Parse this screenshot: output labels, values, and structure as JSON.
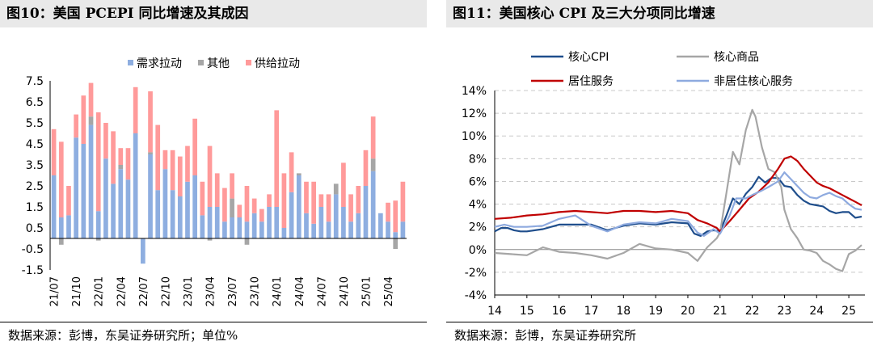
{
  "left_panel": {
    "title": "图10：美国 PCEPI 同比增速及其成因",
    "source": "数据来源：彭博，东吴证券研究所；单位%"
  },
  "right_panel": {
    "title": "图11：美国核心 CPI 及三大分项同比增速",
    "source": "数据来源：彭博，东吴证券研究所"
  },
  "chart_data": [
    {
      "type": "bar",
      "stacked": true,
      "title": "",
      "ylim": [
        -1.5,
        7.5
      ],
      "y_ticks": [
        "-1.5",
        "-0.5",
        "0.5",
        "1.5",
        "2.5",
        "3.5",
        "4.5",
        "5.5",
        "6.5",
        "7.5"
      ],
      "x_tick_labels": [
        "21/07",
        "21/10",
        "22/01",
        "22/04",
        "22/07",
        "22/10",
        "23/01",
        "23/04",
        "23/07",
        "23/10",
        "24/01",
        "24/04",
        "24/07",
        "24/10",
        "25/01",
        "25/04"
      ],
      "legend_position": "top",
      "categories": [
        "21/07",
        "21/08",
        "21/09",
        "21/10",
        "21/11",
        "21/12",
        "22/01",
        "22/02",
        "22/03",
        "22/04",
        "22/05",
        "22/06",
        "22/07",
        "22/08",
        "22/09",
        "22/10",
        "22/11",
        "22/12",
        "23/01",
        "23/02",
        "23/03",
        "23/04",
        "23/05",
        "23/06",
        "23/07",
        "23/08",
        "23/09",
        "23/10",
        "23/11",
        "23/12",
        "24/01",
        "24/02",
        "24/03",
        "24/04",
        "24/05",
        "24/06",
        "24/07",
        "24/08",
        "24/09",
        "24/10",
        "24/11",
        "24/12",
        "25/01",
        "25/02",
        "25/03",
        "25/04",
        "25/05",
        "25/06"
      ],
      "series": [
        {
          "name": "需求拉动",
          "color": "#8eaee0",
          "values": [
            3.0,
            1.0,
            1.1,
            4.8,
            4.5,
            5.4,
            1.3,
            3.8,
            2.6,
            3.3,
            2.8,
            5.0,
            -1.2,
            4.0,
            2.3,
            3.3,
            2.3,
            2.0,
            2.7,
            3.0,
            1.1,
            1.5,
            1.5,
            0.8,
            1.0,
            1.0,
            0.8,
            1.2,
            0.8,
            1.5,
            1.5,
            0.5,
            2.2,
            3.0,
            1.2,
            0.7,
            1.5,
            0.8,
            2.1,
            1.5,
            0.8,
            1.2,
            2.5,
            3.2,
            1.2,
            0.8,
            0.3,
            0.8
          ]
        },
        {
          "name": "其他",
          "color": "#a6a6a6",
          "values": [
            0.0,
            -0.3,
            0.0,
            0.0,
            0.0,
            0.4,
            -0.1,
            0.0,
            0.0,
            0.2,
            0.0,
            0.0,
            0.0,
            0.1,
            0.0,
            0.0,
            0.0,
            0.0,
            0.0,
            0.0,
            0.0,
            -0.1,
            0.0,
            0.0,
            0.9,
            0.0,
            -0.3,
            0.0,
            0.0,
            0.0,
            0.0,
            0.0,
            0.0,
            0.1,
            0.0,
            0.0,
            0.0,
            0.0,
            0.5,
            0.0,
            0.0,
            0.0,
            0.0,
            0.6,
            0.0,
            0.0,
            -0.5,
            0.0
          ]
        },
        {
          "name": "供给拉动",
          "color": "#ff9a9a",
          "values": [
            2.2,
            3.6,
            1.4,
            1.1,
            2.3,
            1.6,
            4.7,
            1.7,
            2.5,
            0.8,
            1.5,
            2.2,
            0.0,
            2.9,
            3.1,
            0.9,
            1.9,
            1.9,
            1.7,
            2.7,
            1.6,
            2.9,
            1.6,
            1.6,
            1.2,
            0.6,
            1.7,
            0.7,
            0.6,
            0.6,
            4.6,
            2.6,
            1.9,
            0.0,
            1.5,
            2.0,
            0.6,
            1.3,
            0.0,
            2.1,
            1.3,
            1.3,
            1.7,
            2.0,
            0.0,
            0.9,
            1.5,
            1.9
          ]
        }
      ]
    },
    {
      "type": "line",
      "title": "",
      "ylim": [
        -4,
        14
      ],
      "y_ticks": [
        "-4%",
        "-2%",
        "0%",
        "2%",
        "4%",
        "6%",
        "8%",
        "10%",
        "12%",
        "14%"
      ],
      "xlim": [
        14,
        25.5
      ],
      "x_ticks": [
        "14",
        "15",
        "16",
        "17",
        "18",
        "19",
        "20",
        "21",
        "22",
        "23",
        "24",
        "25"
      ],
      "grid": true,
      "legend_position": "top",
      "series": [
        {
          "name": "核心CPI",
          "color": "#1f4e8c",
          "width": 2.2,
          "x": [
            14.0,
            14.2,
            14.4,
            14.6,
            14.8,
            15.0,
            15.5,
            16.0,
            16.5,
            17.0,
            17.5,
            18.0,
            18.5,
            19.0,
            19.5,
            20.0,
            20.2,
            20.4,
            20.6,
            20.8,
            21.0,
            21.2,
            21.4,
            21.6,
            21.8,
            22.0,
            22.2,
            22.4,
            22.6,
            22.8,
            23.0,
            23.2,
            23.4,
            23.6,
            23.8,
            24.0,
            24.2,
            24.4,
            24.6,
            24.8,
            25.0,
            25.2,
            25.4
          ],
          "y": [
            1.6,
            1.9,
            1.9,
            1.7,
            1.6,
            1.6,
            1.8,
            2.2,
            2.2,
            2.2,
            1.7,
            2.1,
            2.3,
            2.2,
            2.4,
            2.3,
            1.4,
            1.2,
            1.6,
            1.7,
            1.6,
            3.0,
            4.5,
            4.0,
            4.9,
            5.5,
            6.4,
            5.9,
            6.3,
            6.3,
            5.6,
            5.5,
            4.8,
            4.3,
            4.0,
            3.9,
            3.8,
            3.4,
            3.2,
            3.3,
            3.3,
            2.8,
            2.9
          ]
        },
        {
          "name": "核心商品",
          "color": "#a6a6a6",
          "width": 2.2,
          "x": [
            14.0,
            14.5,
            15.0,
            15.5,
            16.0,
            16.5,
            17.0,
            17.5,
            18.0,
            18.5,
            19.0,
            19.5,
            20.0,
            20.3,
            20.6,
            20.9,
            21.0,
            21.2,
            21.4,
            21.6,
            21.8,
            22.0,
            22.1,
            22.3,
            22.5,
            22.7,
            22.9,
            23.0,
            23.2,
            23.4,
            23.6,
            23.8,
            24.0,
            24.2,
            24.4,
            24.6,
            24.8,
            25.0,
            25.2,
            25.4
          ],
          "y": [
            -0.3,
            -0.4,
            -0.5,
            0.2,
            -0.2,
            -0.3,
            -0.5,
            -0.8,
            -0.3,
            0.5,
            0.1,
            0.0,
            -0.3,
            -1.0,
            0.2,
            1.0,
            1.5,
            5.0,
            8.6,
            7.5,
            10.5,
            12.3,
            11.7,
            9.0,
            7.1,
            6.8,
            5.5,
            3.5,
            1.8,
            1.0,
            0.0,
            -0.1,
            -0.3,
            -1.0,
            -1.3,
            -1.7,
            -1.9,
            -0.4,
            -0.1,
            0.4
          ]
        },
        {
          "name": "居住服务",
          "color": "#c00000",
          "width": 2.2,
          "x": [
            14.0,
            14.5,
            15.0,
            15.5,
            16.0,
            16.5,
            17.0,
            17.5,
            18.0,
            18.5,
            19.0,
            19.5,
            20.0,
            20.3,
            20.6,
            20.9,
            21.0,
            21.3,
            21.6,
            21.9,
            22.2,
            22.5,
            22.8,
            23.0,
            23.2,
            23.4,
            23.6,
            23.8,
            24.0,
            24.2,
            24.4,
            24.6,
            24.8,
            25.0,
            25.2,
            25.4
          ],
          "y": [
            2.7,
            2.8,
            3.0,
            3.1,
            3.3,
            3.4,
            3.3,
            3.2,
            3.4,
            3.4,
            3.3,
            3.4,
            3.2,
            2.6,
            2.3,
            1.9,
            1.6,
            2.5,
            3.5,
            4.5,
            5.1,
            5.9,
            7.1,
            8.0,
            8.2,
            7.8,
            7.1,
            6.5,
            5.9,
            5.6,
            5.4,
            5.1,
            4.8,
            4.5,
            4.2,
            3.9
          ]
        },
        {
          "name": "非居住核心服务",
          "color": "#8eaadf",
          "width": 2.2,
          "x": [
            14.0,
            14.3,
            14.6,
            15.0,
            15.5,
            16.0,
            16.5,
            17.0,
            17.5,
            18.0,
            18.5,
            19.0,
            19.5,
            20.0,
            20.3,
            20.5,
            20.8,
            21.0,
            21.3,
            21.5,
            21.8,
            22.0,
            22.3,
            22.5,
            22.8,
            23.0,
            23.2,
            23.4,
            23.6,
            23.8,
            24.0,
            24.2,
            24.4,
            24.6,
            24.8,
            25.0,
            25.2,
            25.4
          ],
          "y": [
            2.0,
            2.2,
            2.0,
            2.0,
            2.1,
            2.7,
            3.0,
            2.1,
            1.6,
            2.2,
            2.4,
            2.3,
            2.7,
            2.5,
            1.5,
            1.2,
            1.8,
            1.4,
            3.0,
            4.5,
            4.5,
            4.8,
            5.2,
            5.5,
            6.0,
            6.8,
            6.2,
            5.6,
            5.0,
            4.6,
            4.5,
            4.8,
            5.0,
            4.7,
            4.5,
            4.0,
            3.6,
            3.5
          ]
        }
      ]
    }
  ]
}
